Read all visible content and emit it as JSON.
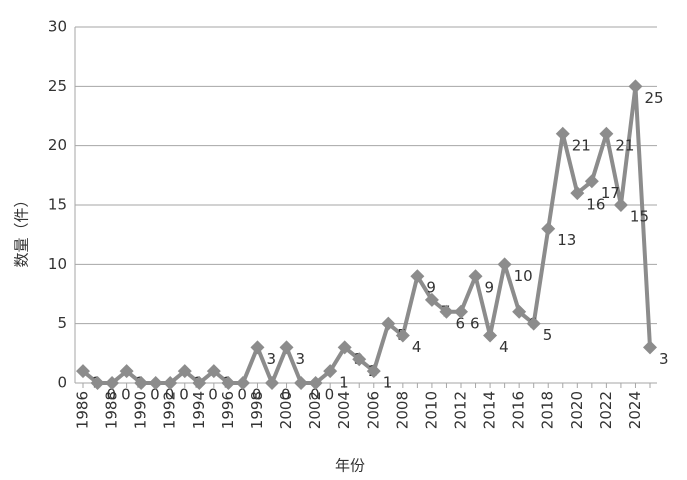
{
  "chart_data": {
    "type": "line",
    "x_label": "年份",
    "y_label": "数量（件）",
    "categories": [
      "1986",
      null,
      "1988",
      null,
      "1990",
      null,
      "1992",
      null,
      "1994",
      null,
      "1996",
      null,
      "1998",
      null,
      "2000",
      null,
      "2002",
      null,
      "2004",
      null,
      "2006",
      null,
      "2008",
      null,
      "2010",
      null,
      "2012",
      null,
      "2014",
      null,
      "2016",
      null,
      "2018",
      null,
      "2020",
      null,
      "2022",
      null,
      "2024",
      null
    ],
    "series": [
      {
        "name": "数量",
        "color": "#8c8c8c",
        "values": [
          1,
          0,
          0,
          1,
          0,
          0,
          0,
          1,
          0,
          1,
          0,
          0,
          3,
          0,
          3,
          0,
          0,
          1,
          3,
          2,
          1,
          5,
          4,
          9,
          7,
          6,
          6,
          9,
          4,
          10,
          6,
          5,
          13,
          21,
          16,
          17,
          21,
          15,
          25,
          3
        ]
      }
    ],
    "ylim": [
      0,
      30
    ],
    "yticks": [
      0,
      5,
      10,
      15,
      20,
      25,
      30
    ],
    "grid": true
  }
}
